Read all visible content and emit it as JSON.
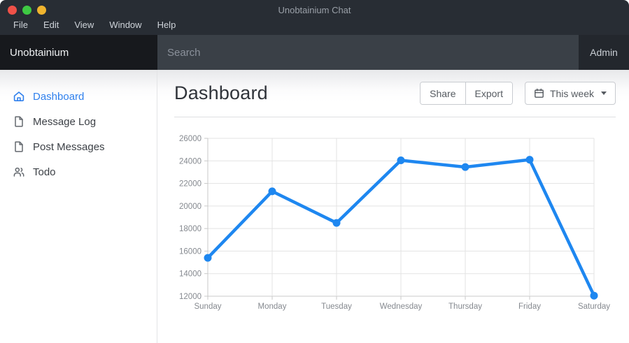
{
  "window": {
    "title": "Unobtainium Chat",
    "menu": [
      "File",
      "Edit",
      "View",
      "Window",
      "Help"
    ],
    "traffic_lights": {
      "close": "#ef5148",
      "minimize": "#3ec943",
      "zoom": "#f0b42e"
    }
  },
  "header": {
    "brand": "Unobtainium",
    "search_placeholder": "Search",
    "user_label": "Admin"
  },
  "sidebar": {
    "items": [
      {
        "label": "Dashboard",
        "icon": "home-icon",
        "active": true
      },
      {
        "label": "Message Log",
        "icon": "file-icon",
        "active": false
      },
      {
        "label": "Post Messages",
        "icon": "file-icon",
        "active": false
      },
      {
        "label": "Todo",
        "icon": "users-icon",
        "active": false
      }
    ]
  },
  "page": {
    "title": "Dashboard",
    "share_label": "Share",
    "export_label": "Export",
    "range_label": "This week"
  },
  "theme": {
    "accent_blue": "#2f80ed",
    "chart_line": "#1e87f0",
    "grid_color": "#e3e3e3",
    "axis_color": "#c9c9c9",
    "tick_label_color": "#85898f"
  },
  "chart_data": {
    "type": "line",
    "categories": [
      "Sunday",
      "Monday",
      "Tuesday",
      "Wednesday",
      "Thursday",
      "Friday",
      "Saturday"
    ],
    "values": [
      15400,
      21300,
      18500,
      24050,
      23450,
      24100,
      12050
    ],
    "title": "",
    "xlabel": "",
    "ylabel": "",
    "ylim": [
      12000,
      26000
    ],
    "ytick_step": 2000,
    "grid": true,
    "legend": false,
    "line_color": "#1e87f0"
  }
}
